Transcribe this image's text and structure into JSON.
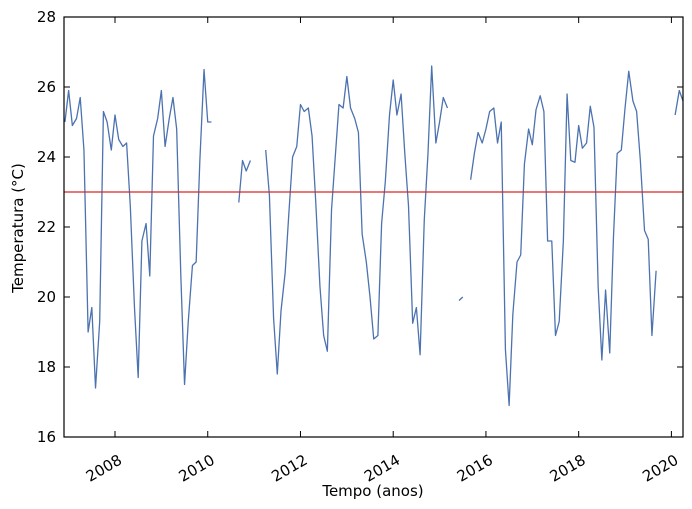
{
  "chart_data": {
    "type": "line",
    "title": "",
    "xlabel": "Tempo (anos)",
    "ylabel": "Temperatura (°C)",
    "xlim": [
      2006.9,
      2020.25
    ],
    "ylim": [
      16,
      28
    ],
    "grid": false,
    "x_ticks": [
      2008,
      2010,
      2012,
      2014,
      2016,
      2018,
      2020
    ],
    "x_tick_labels": [
      "2008",
      "2010",
      "2012",
      "2014",
      "2016",
      "2018",
      "2020"
    ],
    "y_ticks": [
      16,
      18,
      20,
      22,
      24,
      26,
      28
    ],
    "y_tick_labels": [
      "16",
      "18",
      "20",
      "22",
      "24",
      "26",
      "28"
    ],
    "reference_line": {
      "y": 23.0,
      "color": "#d62728"
    },
    "series": [
      {
        "color": "#4c72b0",
        "segments": [
          [
            [
              2006.92,
              25.0
            ],
            [
              2007.0,
              25.9
            ],
            [
              2007.08,
              24.9
            ],
            [
              2007.17,
              25.1
            ],
            [
              2007.25,
              25.7
            ],
            [
              2007.33,
              24.2
            ],
            [
              2007.42,
              19.0
            ],
            [
              2007.5,
              19.7
            ],
            [
              2007.58,
              17.4
            ],
            [
              2007.67,
              19.3
            ],
            [
              2007.75,
              25.3
            ],
            [
              2007.83,
              25.0
            ],
            [
              2007.92,
              24.2
            ],
            [
              2008.0,
              25.2
            ],
            [
              2008.08,
              24.5
            ],
            [
              2008.17,
              24.3
            ],
            [
              2008.25,
              24.4
            ],
            [
              2008.33,
              22.6
            ],
            [
              2008.42,
              19.7
            ],
            [
              2008.5,
              17.7
            ],
            [
              2008.58,
              21.6
            ],
            [
              2008.67,
              22.1
            ],
            [
              2008.75,
              20.6
            ],
            [
              2008.83,
              24.6
            ],
            [
              2008.92,
              25.1
            ],
            [
              2009.0,
              25.9
            ],
            [
              2009.08,
              24.3
            ],
            [
              2009.17,
              25.1
            ],
            [
              2009.25,
              25.7
            ],
            [
              2009.33,
              24.8
            ],
            [
              2009.42,
              20.6
            ],
            [
              2009.5,
              17.5
            ],
            [
              2009.58,
              19.3
            ],
            [
              2009.67,
              20.9
            ],
            [
              2009.75,
              21.0
            ],
            [
              2009.83,
              23.9
            ],
            [
              2009.92,
              26.5
            ],
            [
              2010.0,
              25.0
            ],
            [
              2010.08,
              25.0
            ]
          ],
          [
            [
              2010.67,
              22.7
            ],
            [
              2010.75,
              23.9
            ],
            [
              2010.83,
              23.6
            ],
            [
              2010.92,
              23.9
            ]
          ],
          [
            [
              2011.25,
              24.2
            ],
            [
              2011.33,
              22.9
            ],
            [
              2011.42,
              19.4
            ],
            [
              2011.5,
              17.8
            ],
            [
              2011.58,
              19.6
            ],
            [
              2011.67,
              20.7
            ],
            [
              2011.75,
              22.4
            ],
            [
              2011.83,
              24.0
            ],
            [
              2011.92,
              24.3
            ],
            [
              2012.0,
              25.5
            ],
            [
              2012.08,
              25.3
            ],
            [
              2012.17,
              25.4
            ],
            [
              2012.25,
              24.6
            ],
            [
              2012.33,
              22.7
            ],
            [
              2012.42,
              20.3
            ],
            [
              2012.5,
              18.9
            ],
            [
              2012.58,
              18.45
            ],
            [
              2012.67,
              22.5
            ],
            [
              2012.75,
              24.0
            ],
            [
              2012.83,
              25.5
            ],
            [
              2012.92,
              25.4
            ],
            [
              2013.0,
              26.3
            ],
            [
              2013.08,
              25.4
            ],
            [
              2013.17,
              25.1
            ],
            [
              2013.25,
              24.7
            ],
            [
              2013.33,
              21.8
            ],
            [
              2013.42,
              21.0
            ],
            [
              2013.5,
              20.0
            ],
            [
              2013.58,
              18.8
            ],
            [
              2013.67,
              18.9
            ],
            [
              2013.75,
              22.1
            ],
            [
              2013.83,
              23.3
            ],
            [
              2013.92,
              25.2
            ],
            [
              2014.0,
              26.2
            ],
            [
              2014.08,
              25.2
            ],
            [
              2014.17,
              25.8
            ],
            [
              2014.25,
              24.1
            ],
            [
              2014.33,
              22.6
            ],
            [
              2014.42,
              19.25
            ],
            [
              2014.5,
              19.7
            ],
            [
              2014.58,
              18.35
            ],
            [
              2014.67,
              22.2
            ],
            [
              2014.75,
              24.1
            ],
            [
              2014.83,
              26.6
            ],
            [
              2014.92,
              24.4
            ],
            [
              2015.0,
              25.0
            ],
            [
              2015.08,
              25.7
            ],
            [
              2015.17,
              25.4
            ]
          ],
          [
            [
              2015.42,
              19.9
            ],
            [
              2015.5,
              20.0
            ]
          ],
          [
            [
              2015.67,
              23.35
            ],
            [
              2015.75,
              24.1
            ],
            [
              2015.83,
              24.7
            ],
            [
              2015.92,
              24.4
            ],
            [
              2016.0,
              24.8
            ],
            [
              2016.08,
              25.3
            ],
            [
              2016.17,
              25.4
            ],
            [
              2016.25,
              24.4
            ],
            [
              2016.33,
              25.0
            ],
            [
              2016.42,
              18.5
            ],
            [
              2016.5,
              16.9
            ],
            [
              2016.58,
              19.5
            ],
            [
              2016.67,
              21.0
            ],
            [
              2016.75,
              21.2
            ],
            [
              2016.83,
              23.8
            ],
            [
              2016.92,
              24.8
            ],
            [
              2017.0,
              24.35
            ],
            [
              2017.08,
              25.35
            ],
            [
              2017.17,
              25.75
            ],
            [
              2017.25,
              25.3
            ],
            [
              2017.33,
              21.6
            ],
            [
              2017.42,
              21.6
            ],
            [
              2017.5,
              18.9
            ],
            [
              2017.58,
              19.3
            ],
            [
              2017.67,
              21.6
            ],
            [
              2017.75,
              25.8
            ],
            [
              2017.83,
              23.9
            ],
            [
              2017.92,
              23.85
            ],
            [
              2018.0,
              24.9
            ],
            [
              2018.08,
              24.25
            ],
            [
              2018.17,
              24.4
            ],
            [
              2018.25,
              25.45
            ],
            [
              2018.33,
              24.85
            ],
            [
              2018.42,
              20.3
            ],
            [
              2018.5,
              18.2
            ],
            [
              2018.58,
              20.2
            ],
            [
              2018.67,
              18.4
            ],
            [
              2018.75,
              21.7
            ],
            [
              2018.83,
              24.1
            ],
            [
              2018.92,
              24.2
            ],
            [
              2019.0,
              25.4
            ],
            [
              2019.08,
              26.45
            ],
            [
              2019.17,
              25.6
            ],
            [
              2019.25,
              25.3
            ],
            [
              2019.33,
              23.9
            ],
            [
              2019.42,
              21.9
            ],
            [
              2019.5,
              21.65
            ],
            [
              2019.58,
              18.9
            ],
            [
              2019.67,
              20.75
            ]
          ],
          [
            [
              2020.08,
              25.2
            ],
            [
              2020.17,
              25.9
            ],
            [
              2020.25,
              25.6
            ]
          ]
        ]
      }
    ]
  }
}
